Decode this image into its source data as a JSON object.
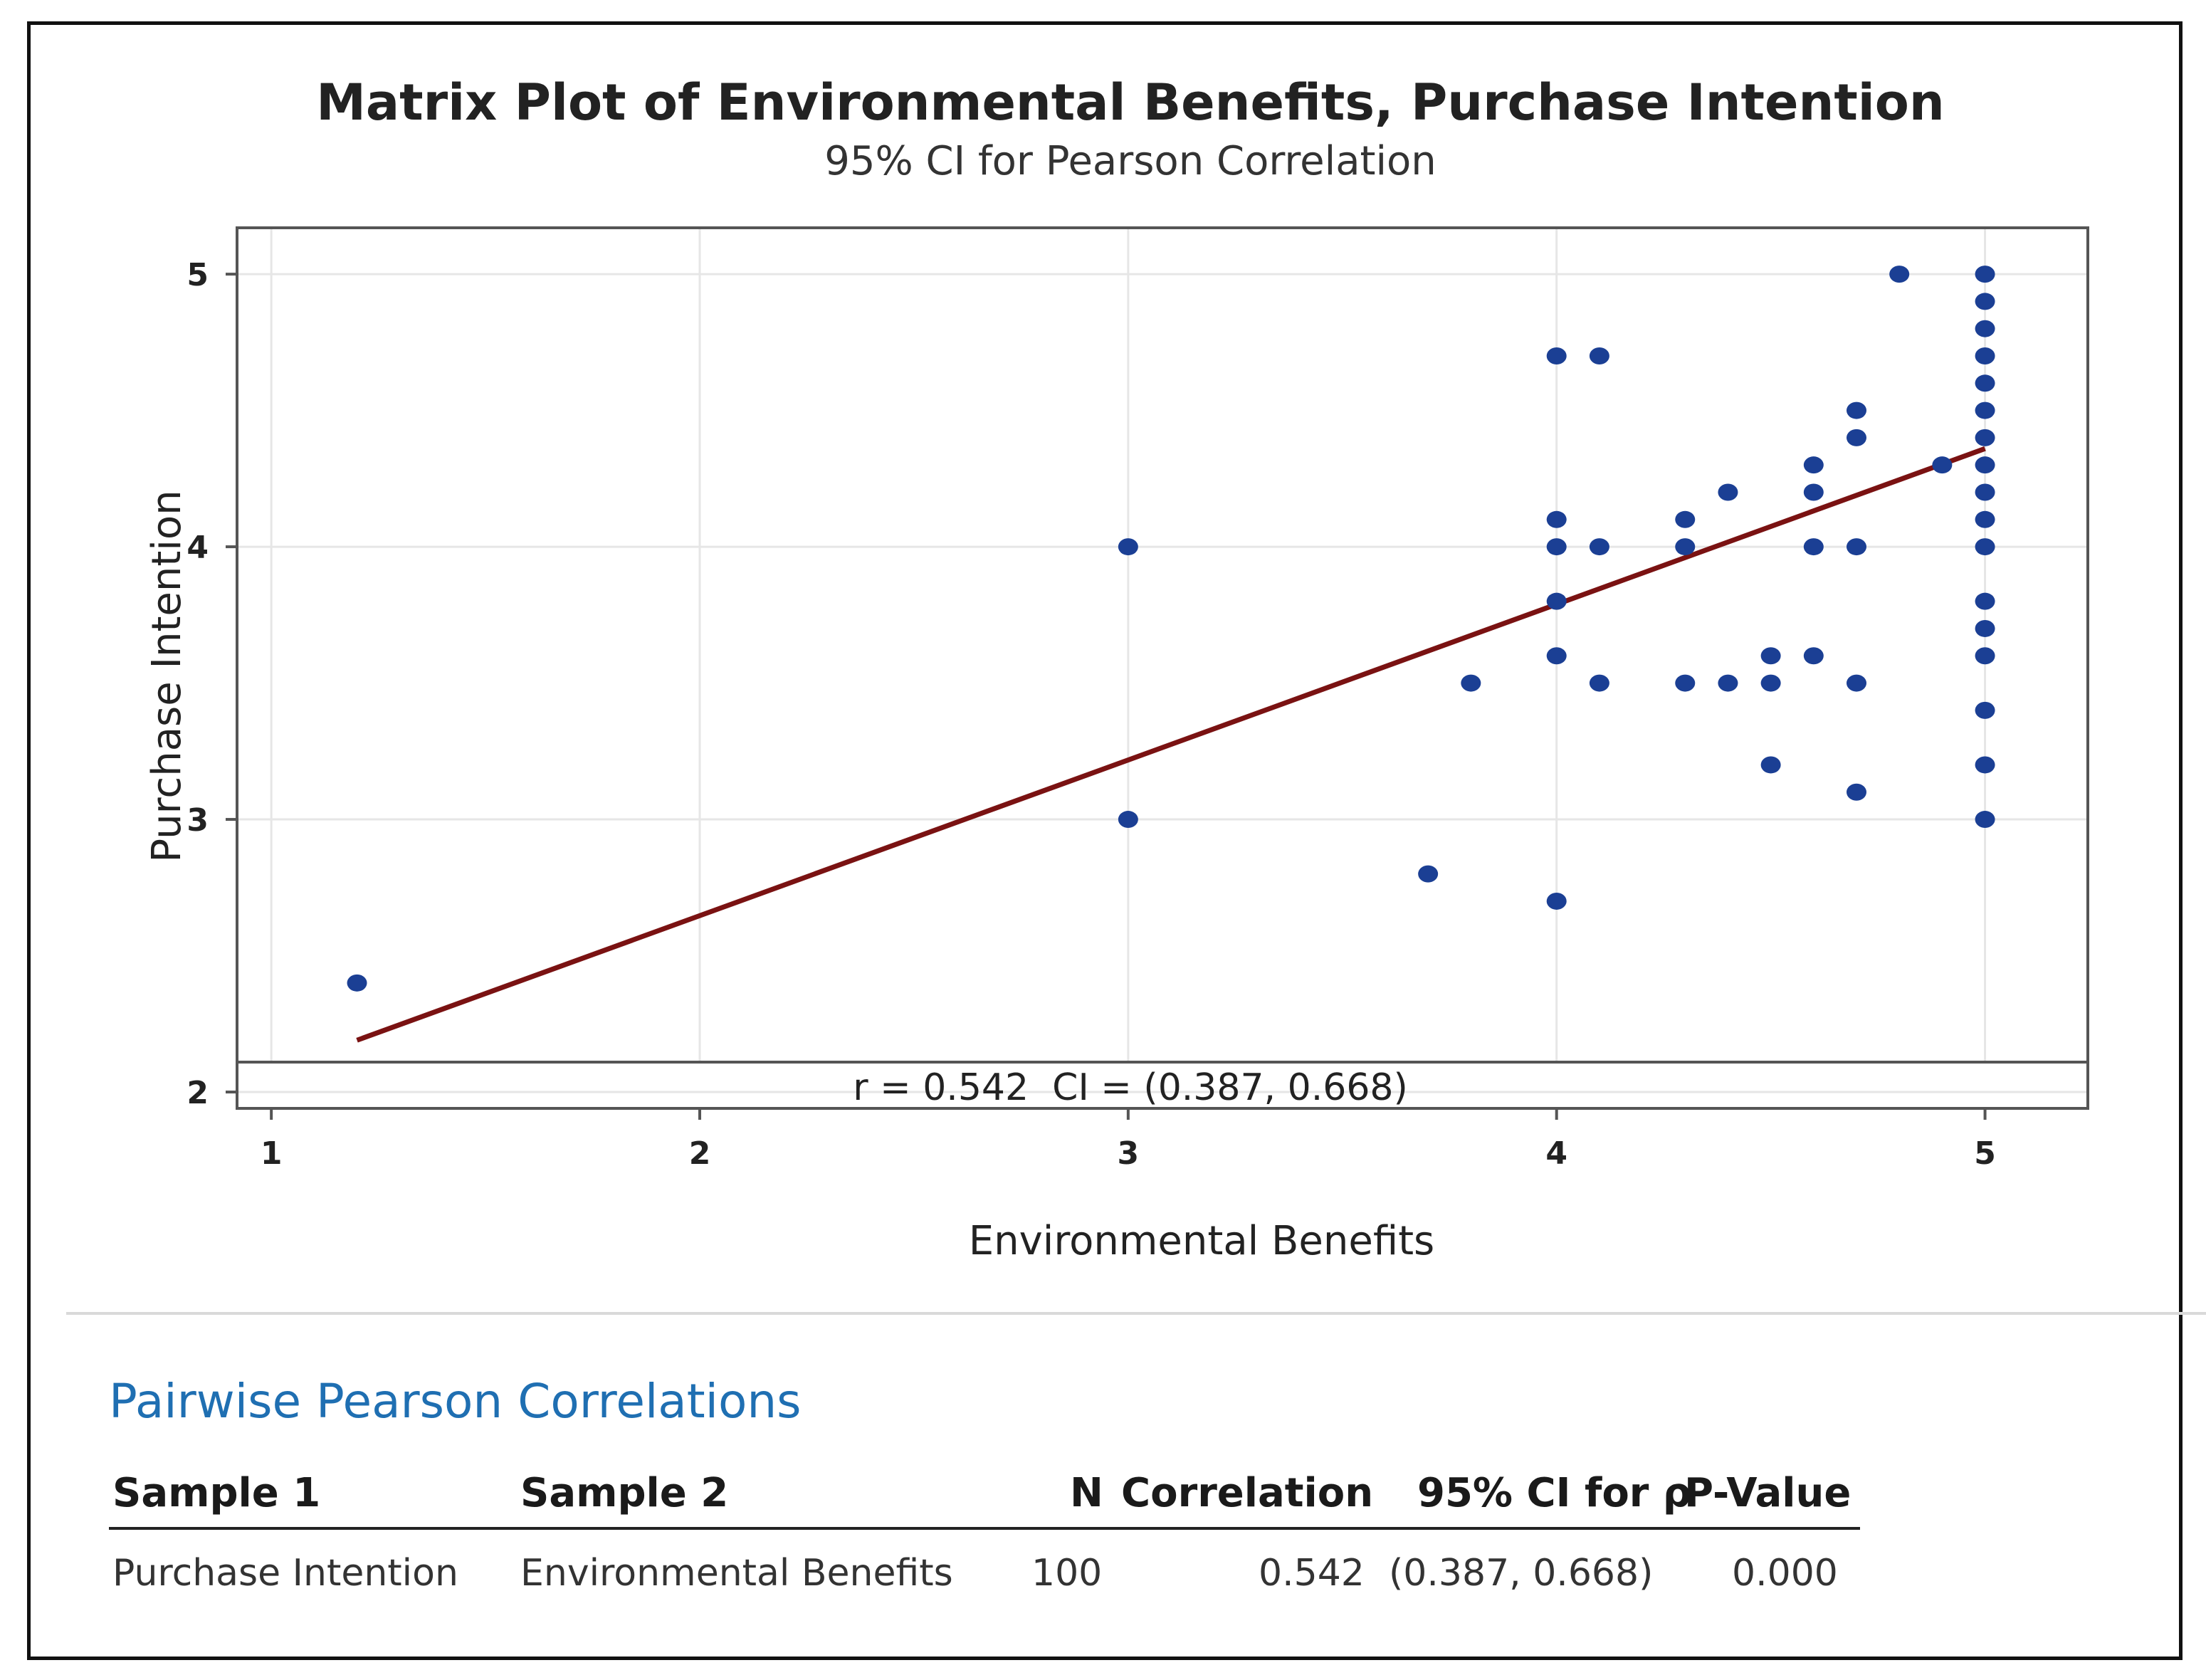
{
  "chart_data": {
    "type": "scatter",
    "title": "Matrix Plot of Environmental Benefits, Purchase Intention",
    "subtitle": "95% CI for Pearson Correlation",
    "xlabel": "Environmental Benefits",
    "ylabel": "Purchase Intention",
    "xlim": [
      0.92,
      5.24
    ],
    "ylim": [
      1.94,
      5.17
    ],
    "x_ticks": [
      1,
      2,
      3,
      4,
      5
    ],
    "y_ticks": [
      2,
      3,
      4,
      5
    ],
    "grid": true,
    "annotation": "r = 0.542  CI = (0.387, 0.668)",
    "marker_color": "#1b3f94",
    "fit_color": "#7a1212",
    "points": [
      [
        1.2,
        2.4
      ],
      [
        3,
        4
      ],
      [
        3,
        3
      ],
      [
        3.7,
        2.8
      ],
      [
        3.8,
        3.5
      ],
      [
        4,
        4.7
      ],
      [
        4,
        4.1
      ],
      [
        4,
        4
      ],
      [
        4,
        3.8
      ],
      [
        4,
        3.6
      ],
      [
        4,
        2.7
      ],
      [
        4.1,
        4.7
      ],
      [
        4.1,
        4
      ],
      [
        4.1,
        3.5
      ],
      [
        4.3,
        4.1
      ],
      [
        4.3,
        4
      ],
      [
        4.3,
        3.5
      ],
      [
        4.4,
        4.2
      ],
      [
        4.4,
        3.5
      ],
      [
        4.5,
        3.6
      ],
      [
        4.5,
        3.5
      ],
      [
        4.5,
        3.2
      ],
      [
        4.6,
        4.3
      ],
      [
        4.6,
        4.2
      ],
      [
        4.6,
        4
      ],
      [
        4.6,
        3.6
      ],
      [
        4.7,
        4.5
      ],
      [
        4.7,
        4.4
      ],
      [
        4.7,
        4
      ],
      [
        4.7,
        3.5
      ],
      [
        4.7,
        3.1
      ],
      [
        4.8,
        5
      ],
      [
        4.9,
        4.3
      ],
      [
        5,
        5
      ],
      [
        5,
        4.9
      ],
      [
        5,
        4.8
      ],
      [
        5,
        4.7
      ],
      [
        5,
        4.6
      ],
      [
        5,
        4.5
      ],
      [
        5,
        4.4
      ],
      [
        5,
        4.3
      ],
      [
        5,
        4.2
      ],
      [
        5,
        4.1
      ],
      [
        5,
        4
      ],
      [
        5,
        3.8
      ],
      [
        5,
        3.7
      ],
      [
        5,
        3.6
      ],
      [
        5,
        3.4
      ],
      [
        5,
        3.2
      ],
      [
        5,
        3
      ]
    ],
    "fit_line": {
      "x": [
        1.2,
        5
      ],
      "y": [
        2.19,
        4.36
      ]
    }
  },
  "table": {
    "title": "Pairwise Pearson Correlations",
    "headers": [
      "Sample 1",
      "Sample 2",
      "N",
      "Correlation",
      "95% CI for ρ",
      "P-Value"
    ],
    "row": {
      "sample1": "Purchase Intention",
      "sample2": "Environmental Benefits",
      "n": "100",
      "correlation": "0.542",
      "ci": "(0.387, 0.668)",
      "p_value": "0.000"
    }
  }
}
